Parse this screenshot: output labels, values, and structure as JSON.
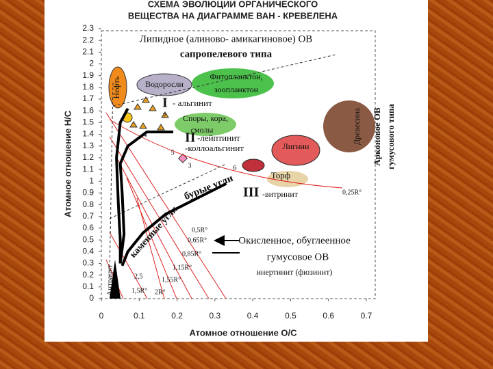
{
  "chart_data": {
    "type": "line",
    "title": [
      "СХЕМА ЭВОЛЮЦИИ ОРГАНИЧЕСКОГО",
      "ВЕЩЕСТВА НА ДИАГРАММЕ ВАН - КРЕВЕЛЕНА"
    ],
    "x_label": "Атомное отношение О/С",
    "y_label": "Атомное отношение Н/С",
    "xlim": [
      0,
      0.7
    ],
    "ylim": [
      0,
      2.3
    ],
    "xticks": [
      0,
      0.1,
      0.2,
      0.3,
      0.4,
      0.5,
      0.6,
      0.7
    ],
    "yticks": [
      0,
      0.1,
      0.2,
      0.3,
      0.4,
      0.5,
      0.6,
      0.7,
      0.8,
      0.9,
      1,
      1.1,
      1.2,
      1.3,
      1.4,
      1.5,
      1.6,
      1.7,
      1.8,
      1.9,
      2,
      2.1,
      2.2,
      2.3
    ],
    "series": [
      {
        "name": "I",
        "color": "#000000",
        "x": [
          0.07,
          0.05,
          0.04,
          0.045,
          0.05,
          0.05
        ],
        "values": [
          1.62,
          1.5,
          1.2,
          0.8,
          0.5,
          0.3
        ]
      },
      {
        "name": "II",
        "color": "#000000",
        "x": [
          0.19,
          0.12,
          0.07,
          0.05,
          0.055,
          0.06,
          0.05
        ],
        "values": [
          1.42,
          1.42,
          1.3,
          1.15,
          0.9,
          0.55,
          0.3
        ]
      },
      {
        "name": "III",
        "color": "#000000",
        "x": [
          0.33,
          0.25,
          0.17,
          0.11,
          0.07,
          0.055
        ],
        "values": [
          0.98,
          0.85,
          0.72,
          0.56,
          0.4,
          0.28
        ]
      }
    ],
    "annotations": [
      "Липидное (алиново- амикагиновое) ОВ",
      "сапропелевого типа",
      "Фитопланктон,",
      "зоопланктон",
      "Водоросли",
      "Нефть",
      "- альгинит",
      "Споры, кора,",
      "смолы",
      "-лейптинит",
      "-коллоальгинит",
      "Лигнин",
      "Древесина",
      "Арконовое ОВ",
      "гумусового типа",
      "Торф",
      "бурые угли",
      "-витринит",
      "0,25R°",
      "каменные угли",
      "0,5R°",
      "0,65R°",
      "0,85R°",
      "1,15R°",
      "1,55R°",
      "2R°",
      "1,5R°",
      "2,5",
      "Окисленное, обуглеенное",
      "гумусовое ОВ",
      "инертинит (фюзинит)",
      "Антрацит",
      "2",
      "4",
      "5",
      "3",
      "6"
    ]
  }
}
